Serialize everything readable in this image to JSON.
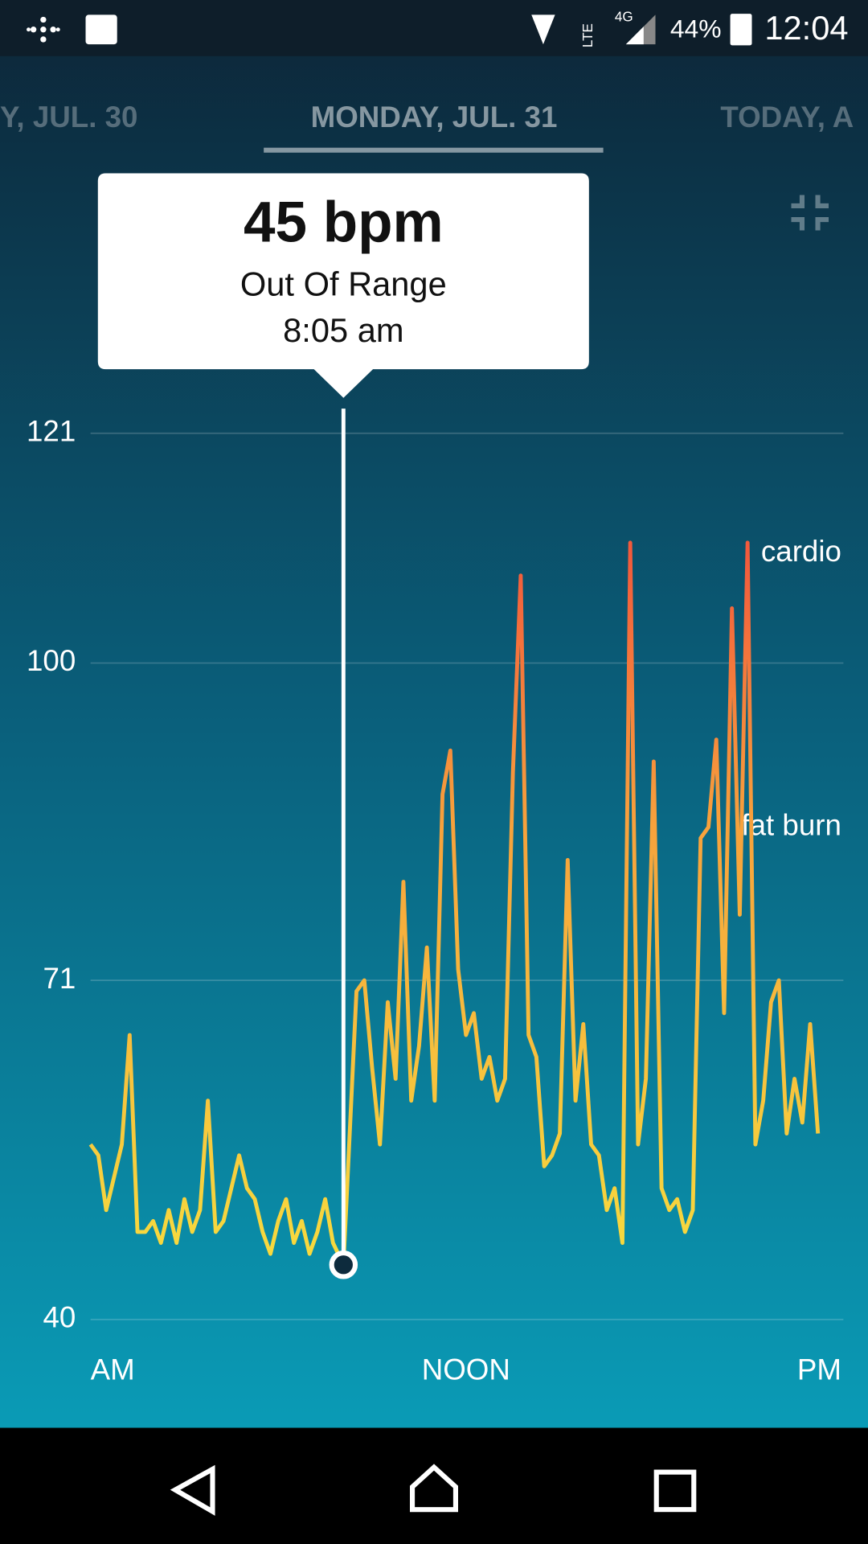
{
  "status_bar": {
    "network": "4G",
    "lte": "LTE",
    "battery": "44%",
    "time": "12:04"
  },
  "tabs": [
    "Y, JUL. 30",
    "MONDAY, JUL. 31",
    "TODAY, A"
  ],
  "tooltip": {
    "value": "45 bpm",
    "status": "Out Of Range",
    "time": "8:05 am"
  },
  "chart_data": {
    "type": "line",
    "x": [
      0,
      0.25,
      0.5,
      0.75,
      1,
      1.25,
      1.5,
      1.75,
      2,
      2.25,
      2.5,
      2.75,
      3,
      3.25,
      3.5,
      3.75,
      4,
      4.25,
      4.5,
      4.75,
      5,
      5.25,
      5.5,
      5.75,
      6,
      6.25,
      6.5,
      6.75,
      7,
      7.25,
      7.5,
      7.75,
      8.0833,
      8.25,
      8.5,
      8.75,
      9,
      9.25,
      9.5,
      9.75,
      10,
      10.25,
      10.5,
      10.75,
      11,
      11.25,
      11.5,
      11.75,
      12,
      12.25,
      12.5,
      12.75,
      13,
      13.25,
      13.5,
      13.75,
      14,
      14.25,
      14.5,
      14.75,
      15,
      15.25,
      15.5,
      15.75,
      16,
      16.25,
      16.5,
      16.75,
      17,
      17.25,
      17.5,
      17.75,
      18,
      18.25,
      18.5,
      18.75,
      19,
      19.25,
      19.5,
      19.75,
      20,
      20.25,
      20.5,
      20.75,
      21,
      21.25,
      21.5,
      21.75,
      22,
      22.25,
      22.5,
      22.75,
      23,
      23.25
    ],
    "series": [
      {
        "color": "#f7e23e",
        "values": [
          56,
          55,
          50,
          53,
          56,
          66,
          48,
          48,
          49,
          47,
          50,
          47,
          51,
          48,
          50,
          60,
          48,
          49,
          52,
          55,
          52,
          51,
          48,
          46,
          49,
          51,
          47,
          49,
          46,
          48,
          51,
          47,
          45,
          55,
          70,
          71,
          63,
          56,
          69,
          62,
          80,
          60,
          65,
          74,
          60,
          88,
          92,
          72,
          66,
          68,
          62,
          64,
          60,
          62,
          90,
          108,
          66,
          64,
          54,
          55,
          57,
          82,
          60,
          67,
          56,
          55,
          50,
          52,
          47,
          111,
          56,
          62,
          91,
          52,
          50,
          51,
          48,
          50,
          84,
          85,
          93,
          68,
          105,
          77,
          111,
          56,
          60,
          69,
          71,
          57,
          62,
          58,
          67,
          57
        ]
      }
    ],
    "zones": [
      {
        "name": "fat burn",
        "value": 85,
        "color": "#f7a23c"
      },
      {
        "name": "cardio",
        "value": 110,
        "color": "#f25a3c"
      }
    ],
    "highlight": {
      "x": 8.0833,
      "value": 45
    },
    "xlim": [
      0,
      24
    ],
    "xticks": [
      {
        "value": 0,
        "label": "AM"
      },
      {
        "value": 12,
        "label": "NOON"
      },
      {
        "value": 24,
        "label": "PM"
      }
    ],
    "ylim": [
      40,
      121
    ],
    "yticks": [
      40,
      71,
      100,
      121
    ],
    "grid": true
  }
}
